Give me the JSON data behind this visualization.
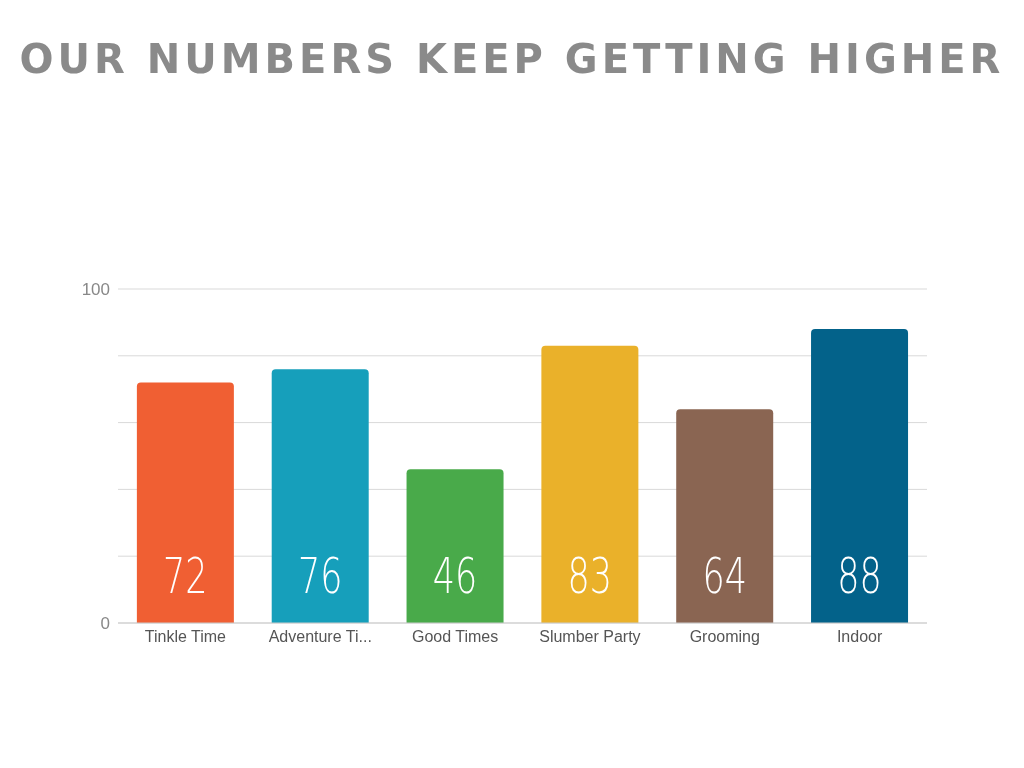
{
  "chart_data": {
    "type": "bar",
    "title": "OUR NUMBERS KEEP GETTING HIGHER",
    "categories": [
      "Tinkle Time",
      "Adventure Ti...",
      "Good Times",
      "Slumber Party",
      "Grooming",
      "Indoor"
    ],
    "values": [
      72,
      76,
      46,
      83,
      64,
      88
    ],
    "colors": [
      "#f05f33",
      "#169fbb",
      "#49aa4a",
      "#eab12a",
      "#8a6552",
      "#03628a"
    ],
    "ylim": [
      0,
      100
    ],
    "yticks": [
      0,
      {
        "value": 20,
        "label": null
      },
      {
        "value": 40,
        "label": null
      },
      {
        "value": 60,
        "label": null
      },
      {
        "value": 80,
        "label": null
      },
      100
    ],
    "grid": "y",
    "data_labels": true
  }
}
